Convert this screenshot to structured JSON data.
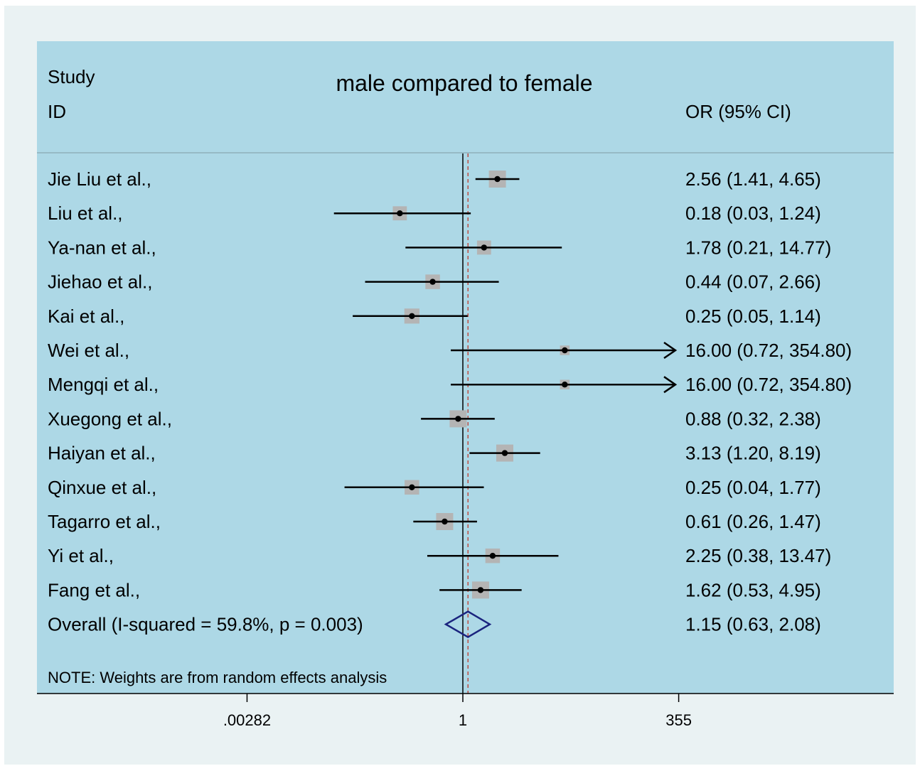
{
  "chart_data": {
    "type": "forest",
    "title": "male compared to female",
    "header_left_line1": "Study",
    "header_left_line2": "ID",
    "header_right": "OR (95% CI)",
    "studies": [
      {
        "id": "Jie Liu et al.,",
        "or": 2.56,
        "lo": 1.41,
        "hi": 4.65,
        "label": "2.56 (1.41, 4.65)",
        "weight": 1.0
      },
      {
        "id": "Liu et al.,",
        "or": 0.18,
        "lo": 0.03,
        "hi": 1.24,
        "label": "0.18 (0.03, 1.24)",
        "weight": 0.7
      },
      {
        "id": "Ya-nan et al.,",
        "or": 1.78,
        "lo": 0.21,
        "hi": 14.77,
        "label": "1.78 (0.21, 14.77)",
        "weight": 0.7
      },
      {
        "id": "Jiehao et al.,",
        "or": 0.44,
        "lo": 0.07,
        "hi": 2.66,
        "label": "0.44 (0.07, 2.66)",
        "weight": 0.75
      },
      {
        "id": "Kai et al.,",
        "or": 0.25,
        "lo": 0.05,
        "hi": 1.14,
        "label": "0.25 (0.05, 1.14)",
        "weight": 0.8
      },
      {
        "id": "Wei et al.,",
        "or": 16.0,
        "lo": 0.72,
        "hi": 354.8,
        "label": "16.00 (0.72, 354.80)",
        "weight": 0.25
      },
      {
        "id": "Mengqi et al.,",
        "or": 16.0,
        "lo": 0.72,
        "hi": 354.8,
        "label": "16.00 (0.72, 354.80)",
        "weight": 0.25
      },
      {
        "id": "Xuegong et al.,",
        "or": 0.88,
        "lo": 0.32,
        "hi": 2.38,
        "label": "0.88 (0.32, 2.38)",
        "weight": 1.0
      },
      {
        "id": "Haiyan et al.,",
        "or": 3.13,
        "lo": 1.2,
        "hi": 8.19,
        "label": "3.13 (1.20, 8.19)",
        "weight": 1.0
      },
      {
        "id": "Qinxue et al.,",
        "or": 0.25,
        "lo": 0.04,
        "hi": 1.77,
        "label": "0.25 (0.04, 1.77)",
        "weight": 0.75
      },
      {
        "id": "Tagarro et al.,",
        "or": 0.61,
        "lo": 0.26,
        "hi": 1.47,
        "label": "0.61 (0.26, 1.47)",
        "weight": 1.0
      },
      {
        "id": "Yi et al.,",
        "or": 2.25,
        "lo": 0.38,
        "hi": 13.47,
        "label": "2.25 (0.38, 13.47)",
        "weight": 0.75
      },
      {
        "id": "Fang et al.,",
        "or": 1.62,
        "lo": 0.53,
        "hi": 4.95,
        "label": "1.62 (0.53, 4.95)",
        "weight": 1.0
      }
    ],
    "overall": {
      "id": "Overall  (I-squared = 59.8%, p = 0.003)",
      "or": 1.15,
      "lo": 0.63,
      "hi": 2.08,
      "label": "1.15 (0.63, 2.08)"
    },
    "x_axis": {
      "scale": "log",
      "ticks": [
        0.00282,
        1,
        355
      ],
      "tick_labels": [
        ".00282",
        "1",
        "355"
      ],
      "range": [
        0.00282,
        355
      ]
    },
    "null_line": 1,
    "note": "NOTE: Weights are from random effects analysis",
    "colors": {
      "panel": "#add8e6",
      "outer": "#eaf2f3",
      "box": "#b4b4b4",
      "line": "#000000",
      "diamond": "#1a237e",
      "divider": "#8fb0ba"
    }
  }
}
